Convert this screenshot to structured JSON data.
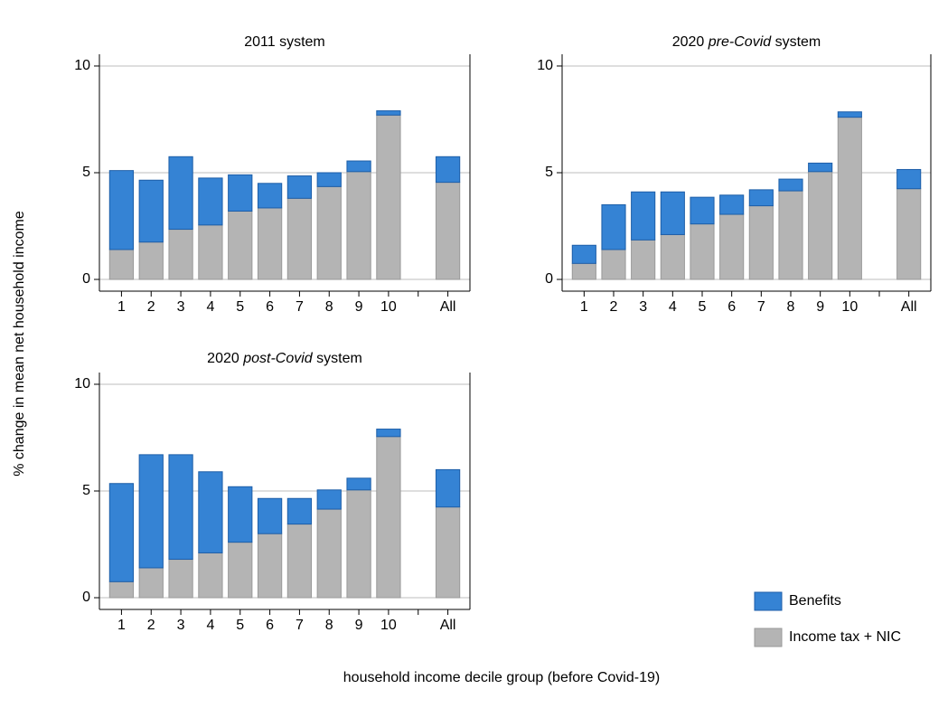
{
  "chart_data": [
    {
      "type": "bar",
      "stacked": true,
      "title_parts": [
        {
          "text": "2011 system"
        }
      ],
      "categories": [
        "1",
        "2",
        "3",
        "4",
        "5",
        "6",
        "7",
        "8",
        "9",
        "10",
        null,
        "All"
      ],
      "series": [
        {
          "name": "Income tax + NIC",
          "color": "#b4b4b4",
          "values": [
            1.4,
            1.75,
            2.35,
            2.55,
            3.2,
            3.35,
            3.8,
            4.35,
            5.05,
            7.7,
            null,
            4.55
          ]
        },
        {
          "name": "Benefits",
          "color": "#3583d4",
          "values": [
            3.7,
            2.9,
            3.4,
            2.2,
            1.7,
            1.15,
            1.05,
            0.65,
            0.5,
            0.2,
            null,
            1.2
          ]
        }
      ],
      "ylim": [
        -0.55,
        10.55
      ],
      "yticks": [
        0,
        5,
        10
      ],
      "grid": true
    },
    {
      "type": "bar",
      "stacked": true,
      "title_parts": [
        {
          "text": "2020 "
        },
        {
          "text": "pre-Covid",
          "italic": true
        },
        {
          "text": " system"
        }
      ],
      "categories": [
        "1",
        "2",
        "3",
        "4",
        "5",
        "6",
        "7",
        "8",
        "9",
        "10",
        null,
        "All"
      ],
      "series": [
        {
          "name": "Income tax + NIC",
          "color": "#b4b4b4",
          "values": [
            0.75,
            1.4,
            1.85,
            2.1,
            2.6,
            3.05,
            3.45,
            4.15,
            5.05,
            7.6,
            null,
            4.25
          ]
        },
        {
          "name": "Benefits",
          "color": "#3583d4",
          "values": [
            0.85,
            2.1,
            2.25,
            2.0,
            1.25,
            0.9,
            0.75,
            0.55,
            0.4,
            0.25,
            null,
            0.9
          ]
        }
      ],
      "ylim": [
        -0.55,
        10.55
      ],
      "yticks": [
        0,
        5,
        10
      ],
      "grid": true
    },
    {
      "type": "bar",
      "stacked": true,
      "title_parts": [
        {
          "text": "2020 "
        },
        {
          "text": "post-Covid",
          "italic": true
        },
        {
          "text": " system"
        }
      ],
      "categories": [
        "1",
        "2",
        "3",
        "4",
        "5",
        "6",
        "7",
        "8",
        "9",
        "10",
        null,
        "All"
      ],
      "series": [
        {
          "name": "Income tax + NIC",
          "color": "#b4b4b4",
          "values": [
            0.75,
            1.4,
            1.8,
            2.1,
            2.6,
            3.0,
            3.45,
            4.15,
            5.05,
            7.55,
            null,
            4.25
          ]
        },
        {
          "name": "Benefits",
          "color": "#3583d4",
          "values": [
            4.6,
            5.3,
            4.9,
            3.8,
            2.6,
            1.65,
            1.2,
            0.9,
            0.55,
            0.35,
            null,
            1.75
          ]
        }
      ],
      "ylim": [
        -0.55,
        10.55
      ],
      "yticks": [
        0,
        5,
        10
      ],
      "grid": true
    }
  ],
  "y_label": "% change in mean net household income",
  "x_label": "household income decile group (before Covid-19)",
  "legend_corner": "bottom-right"
}
